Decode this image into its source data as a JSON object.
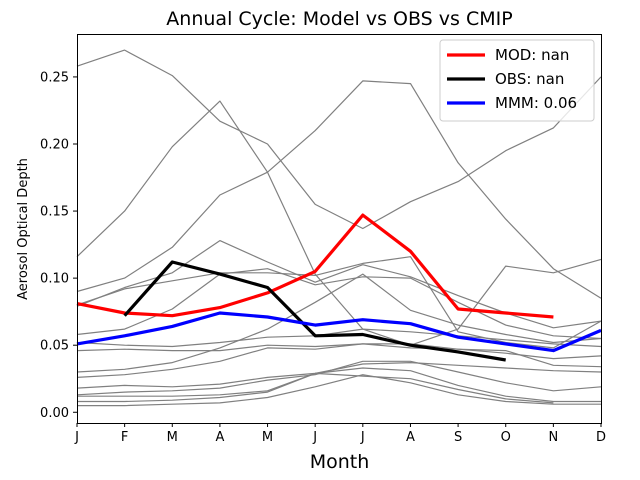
{
  "chart_data": {
    "type": "line",
    "title": "Annual Cycle: Model vs OBS vs CMIP",
    "xlabel": "Month",
    "ylabel": "Aerosol Optical Depth",
    "categories": [
      "J",
      "F",
      "M",
      "A",
      "M",
      "J",
      "J",
      "A",
      "S",
      "O",
      "N",
      "D"
    ],
    "ylim": [
      -0.008,
      0.282
    ],
    "yticks": [
      0.0,
      0.05,
      0.1,
      0.15,
      0.2,
      0.25
    ],
    "ytick_labels": [
      "0.00",
      "0.05",
      "0.10",
      "0.15",
      "0.20",
      "0.25"
    ],
    "grid": false,
    "legend_position": "upper right",
    "colors": {
      "background": "#ffffff",
      "cmip": "#808080",
      "mod": "#ff0000",
      "obs": "#000000",
      "mmm": "#0000ff"
    },
    "series": [
      {
        "name": "MOD: nan",
        "role": "mod",
        "values": [
          0.081,
          0.074,
          0.072,
          0.078,
          0.089,
          0.105,
          0.147,
          0.12,
          0.077,
          0.074,
          0.071,
          null
        ]
      },
      {
        "name": "OBS: nan",
        "role": "obs",
        "values": [
          null,
          0.072,
          0.112,
          0.103,
          0.093,
          0.057,
          0.058,
          0.05,
          0.045,
          0.039,
          null,
          null
        ]
      },
      {
        "name": "MMM: 0.06",
        "role": "mmm",
        "values": [
          0.051,
          0.057,
          0.064,
          0.074,
          0.071,
          0.065,
          0.069,
          0.066,
          0.056,
          0.051,
          0.046,
          0.061
        ]
      }
    ],
    "cmip_series": [
      {
        "values": [
          0.258,
          0.27,
          0.251,
          0.217,
          0.2,
          0.155,
          0.137,
          0.157,
          0.172,
          0.195,
          0.212,
          0.25
        ]
      },
      {
        "values": [
          0.116,
          0.15,
          0.198,
          0.232,
          0.179,
          0.103,
          0.062,
          0.05,
          0.062,
          0.109,
          0.104,
          0.114
        ]
      },
      {
        "values": [
          0.09,
          0.1,
          0.123,
          0.162,
          0.179,
          0.21,
          0.247,
          0.245,
          0.186,
          0.144,
          0.107,
          0.085
        ]
      },
      {
        "values": [
          0.079,
          0.093,
          0.104,
          0.128,
          0.112,
          0.097,
          0.11,
          0.101,
          0.087,
          0.074,
          0.063,
          0.068
        ]
      },
      {
        "values": [
          0.08,
          0.092,
          0.098,
          0.104,
          0.104,
          0.102,
          0.111,
          0.116,
          0.06,
          0.052,
          0.048,
          0.068
        ]
      },
      {
        "values": [
          0.058,
          0.062,
          0.077,
          0.103,
          0.107,
          0.095,
          0.101,
          0.1,
          0.082,
          0.065,
          0.057,
          0.055
        ]
      },
      {
        "values": [
          0.03,
          0.032,
          0.037,
          0.048,
          0.062,
          0.082,
          0.103,
          0.076,
          0.065,
          0.058,
          0.052,
          0.055
        ]
      },
      {
        "values": [
          0.052,
          0.05,
          0.049,
          0.052,
          0.056,
          0.057,
          0.062,
          0.06,
          0.057,
          0.054,
          0.051,
          0.049
        ]
      },
      {
        "values": [
          0.046,
          0.047,
          0.046,
          0.046,
          0.05,
          0.049,
          0.051,
          0.051,
          0.047,
          0.044,
          0.04,
          0.042
        ]
      },
      {
        "values": [
          0.026,
          0.028,
          0.032,
          0.038,
          0.048,
          0.047,
          0.051,
          0.048,
          0.047,
          0.046,
          0.035,
          0.034
        ]
      },
      {
        "values": [
          0.018,
          0.02,
          0.019,
          0.021,
          0.026,
          0.029,
          0.036,
          0.037,
          0.035,
          0.033,
          0.031,
          0.03
        ]
      },
      {
        "values": [
          0.013,
          0.015,
          0.016,
          0.018,
          0.024,
          0.028,
          0.038,
          0.038,
          0.03,
          0.022,
          0.016,
          0.019
        ]
      },
      {
        "values": [
          0.012,
          0.012,
          0.012,
          0.013,
          0.016,
          0.029,
          0.033,
          0.031,
          0.02,
          0.012,
          0.008,
          0.008
        ]
      },
      {
        "values": [
          0.008,
          0.008,
          0.009,
          0.011,
          0.015,
          0.029,
          0.027,
          0.025,
          0.017,
          0.01,
          0.007,
          null
        ]
      },
      {
        "values": [
          0.005,
          0.005,
          0.006,
          0.007,
          0.011,
          0.019,
          0.028,
          0.022,
          0.013,
          0.008,
          0.006,
          0.006
        ]
      }
    ]
  }
}
